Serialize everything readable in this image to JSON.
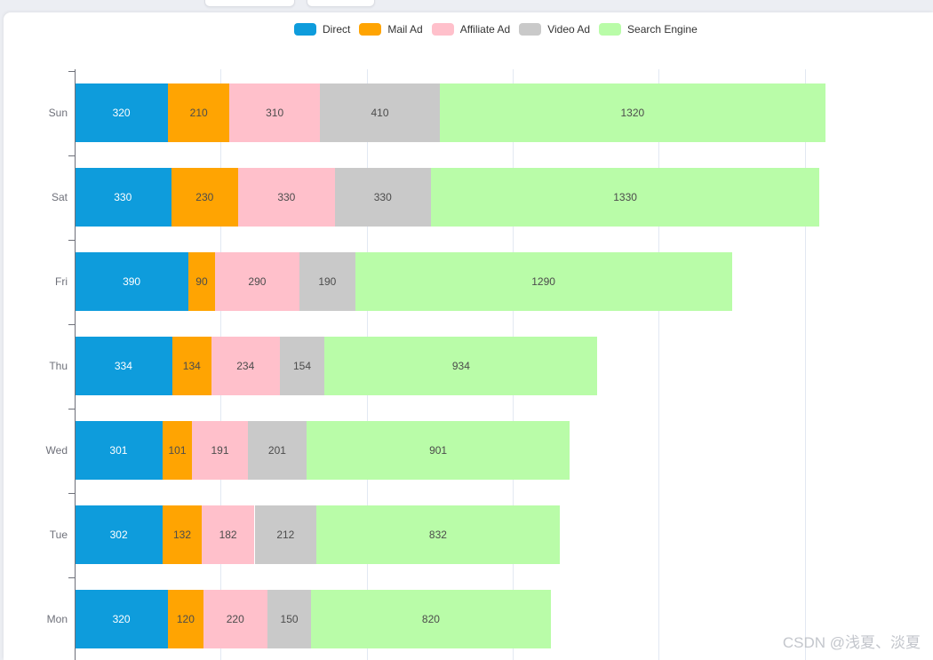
{
  "page": {
    "background_color": "#ECEEF3",
    "card_color": "#FFFFFF",
    "watermark": "CSDN @浅夏、淡夏"
  },
  "top_tabs": [
    {
      "name": "partial-tab-1"
    },
    {
      "name": "partial-tab-2"
    }
  ],
  "chart_data": {
    "type": "bar",
    "orientation": "horizontal",
    "stacked": true,
    "title": "",
    "categories_top_to_bottom": [
      "Sun",
      "Sat",
      "Fri",
      "Thu",
      "Wed",
      "Tue",
      "Mon"
    ],
    "series": [
      {
        "name": "Direct",
        "color": "#0E9CDC",
        "label_color": "#FFFFFF",
        "values": [
          320,
          330,
          390,
          334,
          301,
          302,
          320
        ]
      },
      {
        "name": "Mail Ad",
        "color": "#FFA402",
        "label_color": "#4C4C4C",
        "values": [
          210,
          230,
          90,
          134,
          101,
          132,
          120
        ]
      },
      {
        "name": "Affiliate Ad",
        "color": "#FFC0CB",
        "label_color": "#4C4C4C",
        "values": [
          310,
          330,
          290,
          234,
          191,
          182,
          220
        ]
      },
      {
        "name": "Video Ad",
        "color": "#C9C9C9",
        "label_color": "#4C4C4C",
        "values": [
          410,
          330,
          190,
          154,
          201,
          212,
          150
        ]
      },
      {
        "name": "Search Engine",
        "color": "#B9FCA8",
        "label_color": "#4C4C4C",
        "values": [
          1320,
          1330,
          1290,
          934,
          901,
          832,
          820
        ]
      }
    ],
    "totals_top_to_bottom": [
      2570,
      2550,
      2250,
      1790,
      1695,
      1660,
      1630
    ],
    "legend": {
      "position": "top",
      "entries": [
        "Direct",
        "Mail Ad",
        "Affiliate Ad",
        "Video Ad",
        "Search Engine"
      ]
    },
    "x_axis": {
      "min": 0,
      "max": 3000,
      "interval": 500,
      "gridlines_visible": [
        500,
        1000,
        1500,
        2000,
        2500
      ],
      "tick_labels_visible": false
    },
    "y_axis": {
      "labels": [
        "Sun",
        "Sat",
        "Fri",
        "Thu",
        "Wed",
        "Tue",
        "Mon"
      ],
      "label_color": "#6E7079"
    },
    "grid": true,
    "gridline_color": "#E2E8F2",
    "axis_line_color": "#6E7079",
    "value_labels": "inside"
  }
}
